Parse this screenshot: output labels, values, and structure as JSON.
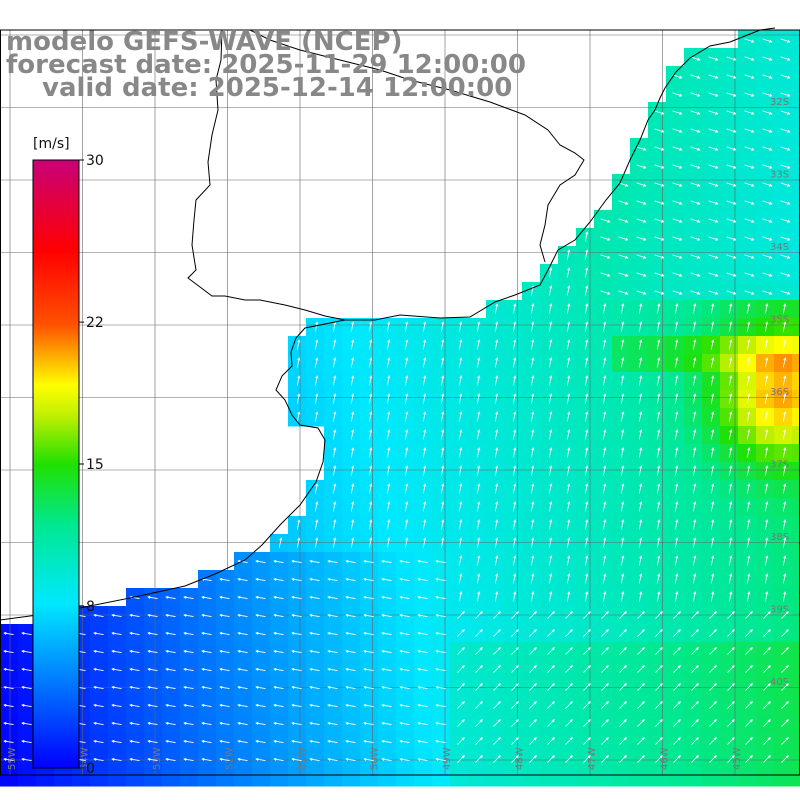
{
  "header": {
    "line1": "modelo GEFS-WAVE (NCEP)",
    "line2": "forecast date: 2025-11-29 12:00:00",
    "line3": "valid date: 2025-12-14 12:00:00"
  },
  "colorbar": {
    "unit": "[m/s]",
    "min": 0,
    "max": 30,
    "ticks": [
      30,
      22,
      15,
      8,
      0
    ]
  },
  "map": {
    "right_edge_labels": [
      "32S",
      "33S",
      "34S",
      "35S",
      "36S",
      "37S",
      "38S",
      "39S",
      "40S"
    ],
    "bottom_labels": [
      "55W",
      "54W",
      "53W",
      "52W",
      "51W",
      "50W",
      "49W",
      "48W",
      "47W",
      "46W",
      "45W"
    ]
  },
  "colors": {
    "c0": "#0000ff",
    "c8": "#00e8ff",
    "c15": "#20e000",
    "c22": "#ff5000",
    "c30": "#c80078",
    "text": "#888888"
  }
}
